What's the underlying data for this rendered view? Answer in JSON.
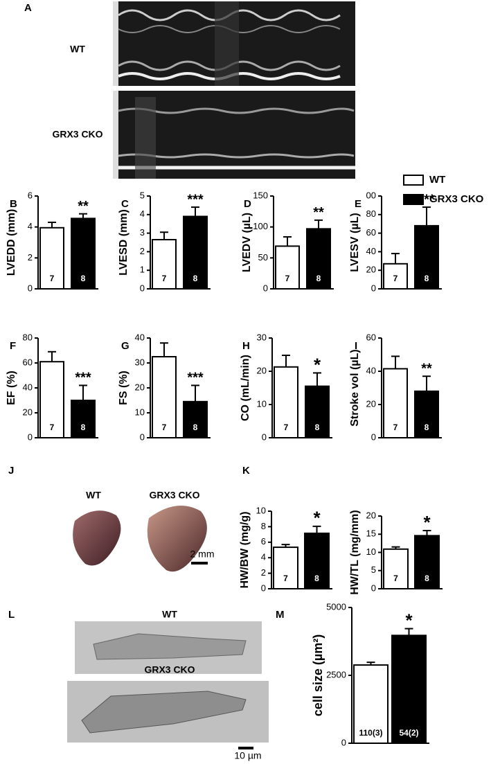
{
  "chart_data": [
    {
      "type": "bar",
      "label": "B",
      "ylabel": "LVEDD (mm)",
      "values": [
        3.95,
        4.55
      ],
      "errors": [
        0.35,
        0.3
      ],
      "n_labels": [
        "7",
        "8"
      ],
      "significance": "**",
      "ylim": [
        0,
        6
      ],
      "yticks": [
        0,
        2,
        4,
        6
      ]
    },
    {
      "type": "bar",
      "label": "C",
      "ylabel": "LVESD (mm)",
      "values": [
        2.65,
        3.9
      ],
      "errors": [
        0.4,
        0.5
      ],
      "n_labels": [
        "7",
        "8"
      ],
      "significance": "***",
      "ylim": [
        0,
        5
      ],
      "yticks": [
        0,
        1,
        2,
        3,
        4,
        5
      ]
    },
    {
      "type": "bar",
      "label": "D",
      "ylabel": "LVEDV (µL)",
      "values": [
        69,
        97
      ],
      "errors": [
        15,
        14
      ],
      "n_labels": [
        "7",
        "8"
      ],
      "significance": "**",
      "ylim": [
        0,
        150
      ],
      "yticks": [
        0,
        50,
        100,
        150
      ]
    },
    {
      "type": "bar",
      "label": "E",
      "ylabel": "LVESV (µL)",
      "values": [
        27,
        68
      ],
      "errors": [
        11,
        20
      ],
      "n_labels": [
        "7",
        "8"
      ],
      "significance": "***",
      "ylim": [
        0,
        100
      ],
      "yticks": [
        0,
        20,
        40,
        60,
        80,
        {
          "value": 100,
          "label": "00"
        }
      ]
    },
    {
      "type": "bar",
      "label": "F",
      "ylabel": "EF (%)",
      "values": [
        61,
        30
      ],
      "errors": [
        8,
        12
      ],
      "n_labels": [
        "7",
        "8"
      ],
      "significance": "***",
      "ylim": [
        0,
        80
      ],
      "yticks": [
        0,
        20,
        40,
        60,
        80
      ]
    },
    {
      "type": "bar",
      "label": "G",
      "ylabel": "FS (%)",
      "values": [
        32.5,
        14.5
      ],
      "errors": [
        5.5,
        6.5
      ],
      "n_labels": [
        "7",
        "8"
      ],
      "significance": "***",
      "ylim": [
        0,
        40
      ],
      "yticks": [
        0,
        10,
        20,
        30,
        40
      ]
    },
    {
      "type": "bar",
      "label": "H",
      "ylabel": "CO (mL/min)",
      "values": [
        21.3,
        15.5
      ],
      "errors": [
        3.5,
        4
      ],
      "n_labels": [
        "7",
        "8"
      ],
      "significance": "*",
      "ylim": [
        0,
        30
      ],
      "yticks": [
        0,
        10,
        20,
        30
      ]
    },
    {
      "type": "bar",
      "label": "I",
      "ylabel": "Stroke vol (µL)",
      "values": [
        41.5,
        28
      ],
      "errors": [
        7.5,
        9
      ],
      "n_labels": [
        "7",
        "8"
      ],
      "significance": "**",
      "ylim": [
        0,
        60
      ],
      "yticks": [
        0,
        20,
        40,
        60
      ]
    },
    {
      "type": "bar",
      "label": "K",
      "ylabel": "HW/BW (mg/g)",
      "values": [
        5.35,
        7.15
      ],
      "errors": [
        0.35,
        0.9
      ],
      "n_labels": [
        "7",
        "8"
      ],
      "significance": "*",
      "ylim": [
        0,
        10
      ],
      "yticks": [
        0,
        2,
        4,
        6,
        8,
        10
      ]
    },
    {
      "type": "bar",
      "ylabel": "HW/TL (mg/mm)",
      "values": [
        10.9,
        14.6
      ],
      "errors": [
        0.6,
        1.4
      ],
      "n_labels": [
        "7",
        "8"
      ],
      "significance": "*",
      "ylim": [
        0,
        20
      ],
      "yticks": [
        0,
        5,
        10,
        15,
        20
      ]
    },
    {
      "type": "bar",
      "label": "M",
      "ylabel": "cell size (µm²)",
      "values": [
        2880,
        3970
      ],
      "errors": [
        100,
        250
      ],
      "n_labels": [
        "110(3)",
        "54(2)"
      ],
      "significance": "*",
      "ylim": [
        0,
        5000
      ],
      "yticks": [
        0,
        2500,
        5000
      ]
    }
  ],
  "legend": [
    {
      "name": "WT",
      "color": "#ffffff"
    },
    {
      "name": "GRX3 CKO",
      "color": "#000000"
    }
  ],
  "panel_A": {
    "label": "A",
    "rows": [
      "WT",
      "GRX3 CKO"
    ]
  },
  "panel_J": {
    "label": "J",
    "captions": [
      "WT",
      "GRX3 CKO"
    ],
    "scale": "2 mm"
  },
  "panel_L": {
    "label": "L",
    "captions": [
      "WT",
      "GRX3 CKO"
    ],
    "scale": "10 µm"
  }
}
